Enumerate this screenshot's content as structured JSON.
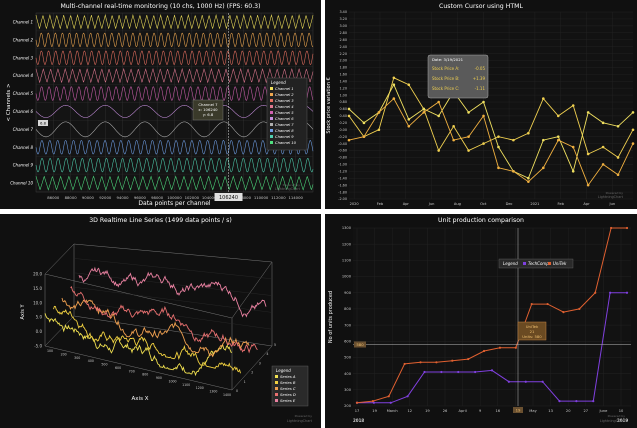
{
  "colors": {
    "background": "#101010",
    "grid": "#333333",
    "text": "#ffffff",
    "axis_text": "#cccccc",
    "legend_bg": "#2a2a2a",
    "tooltip_bg": "#5a5a5a"
  },
  "charts": {
    "multichannel": {
      "ylabel": "< Channels >",
      "cursor_label": "106240",
      "tooltip": {
        "line1": "Channel 7",
        "line2": "x: 106240",
        "line3": "y: 6.8"
      },
      "small_label": "6.8",
      "legend_title": "Legend",
      "watermark": [
        "Powered by",
        "LightningChart"
      ]
    },
    "cursor": {
      "ylabel": "Stock price variation €",
      "year_labels": [
        "2020",
        "2021"
      ],
      "tooltip": {
        "date": "Date: 3/19/2021",
        "rows": [
          {
            "label": "Stock Price A:",
            "value": "-0.05"
          },
          {
            "label": "Stock Price B:",
            "value": "+1.39"
          },
          {
            "label": "Stock Price C:",
            "value": "-1.11"
          }
        ]
      },
      "watermark": [
        "Powered by",
        "LightningChart"
      ]
    },
    "realtime3d": {
      "legend_title": "Legend",
      "watermark": [
        "Powered by",
        "LightningChart"
      ]
    },
    "production": {
      "legend_title": "Legend",
      "cursor_y_label": "580",
      "cursor_x_label": "19",
      "tooltip": {
        "line1": "UniTek",
        "line2": "21",
        "line3": "Units: 580"
      },
      "year_labels": [
        "2018",
        "2019"
      ],
      "watermark": [
        "Powered by",
        "LightningChart"
      ]
    }
  },
  "chart_data": [
    {
      "type": "line",
      "title": "Multi-channel real-time monitoring (10 chs, 1000 Hz) (FPS: 60.3)",
      "xlabel": "Data points per channel",
      "ylabel": "< Channels >",
      "xlim": [
        84000,
        116000
      ],
      "x_ticks": [
        86000,
        88000,
        90000,
        92000,
        94000,
        96000,
        98000,
        100000,
        102000,
        104000,
        106000,
        108000,
        110000,
        112000,
        114000
      ],
      "channels": [
        "Channel 1",
        "Channel 2",
        "Channel 3",
        "Channel 4",
        "Channel 5",
        "Channel 6",
        "Channel 7",
        "Channel 8",
        "Channel 9",
        "Channel 10"
      ],
      "channel_colors": [
        "#f0e05a",
        "#f0a850",
        "#e87060",
        "#e07890",
        "#d060b0",
        "#c890e0",
        "#b0b0b0",
        "#70a0e8",
        "#50d0b0",
        "#50e080"
      ],
      "cursor_x": 106240,
      "cursor_value": 6.8,
      "grid": true,
      "legend_position": "right"
    },
    {
      "type": "line",
      "title": "Custom Cursor using HTML",
      "ylabel": "Stock price variation €",
      "ylim": [
        -2.0,
        3.4
      ],
      "y_ticks": [
        -2.0,
        -1.8,
        -1.6,
        -1.4,
        -1.2,
        -1.0,
        -0.8,
        -0.6,
        -0.4,
        -0.2,
        0.0,
        0.2,
        0.4,
        0.6,
        0.8,
        1.0,
        1.2,
        1.4,
        1.6,
        1.8,
        2.0,
        2.2,
        2.4,
        2.6,
        2.8,
        3.0,
        3.2,
        3.4
      ],
      "x_tick_labels": [
        "2020",
        "Feb",
        "Apr",
        "Jun",
        "Aug",
        "Oct",
        "Dec",
        "2021",
        "Feb",
        "Apr",
        "Jun"
      ],
      "series": [
        {
          "color": "#f0d050",
          "values": [
            0.4,
            -0.2,
            0.0,
            1.5,
            1.3,
            0.6,
            -0.6,
            0.1,
            -0.6,
            -0.4,
            -0.2,
            -0.3,
            -0.1,
            0.9,
            0.4,
            0.7,
            -0.7,
            -0.5,
            -0.8,
            0.0
          ]
        },
        {
          "color": "#f0e060",
          "values": [
            0.6,
            0.2,
            0.5,
            1.3,
            0.3,
            0.6,
            0.4,
            1.1,
            0.5,
            0.8,
            -0.5,
            -1.2,
            -1.4,
            -0.3,
            -0.2,
            -1.2,
            0.5,
            0.2,
            0.1,
            0.5
          ]
        },
        {
          "color": "#f0b040",
          "values": [
            -0.3,
            -0.2,
            0.5,
            0.9,
            0.1,
            0.5,
            0.8,
            -0.3,
            -0.2,
            0.4,
            -1.1,
            -1.2,
            -1.5,
            -1.1,
            -0.3,
            -0.5,
            -1.6,
            -1.0,
            -1.3,
            -0.4
          ]
        }
      ],
      "cursor_x": "3/19/2021",
      "grid": true
    },
    {
      "type": "line",
      "title": "3D Realtime Line Series (1499 data points / s)",
      "xlabel": "Axis X",
      "ylabel": "Axis Y",
      "ylim": [
        -5,
        20
      ],
      "y_ticks": [
        20.0,
        15.0,
        10.0,
        5.0,
        0.0,
        -5.0
      ],
      "x_ticks": [
        100,
        200,
        300,
        400,
        500,
        600,
        700,
        800,
        900,
        1000,
        1100,
        1200,
        1300,
        1400
      ],
      "z_ticks": [
        0,
        1,
        2,
        3,
        4,
        5
      ],
      "series": [
        {
          "name": "Series A",
          "color": "#f0e050"
        },
        {
          "name": "Series B",
          "color": "#f0d040"
        },
        {
          "name": "Series C",
          "color": "#f0a050"
        },
        {
          "name": "Series D",
          "color": "#e87070"
        },
        {
          "name": "Series E",
          "color": "#e880a0"
        }
      ],
      "legend_position": "bottom-right"
    },
    {
      "type": "line",
      "title": "Unit production comparison",
      "ylabel": "No of units produced",
      "ylim": [
        200,
        1300
      ],
      "y_ticks": [
        200,
        300,
        400,
        500,
        600,
        700,
        800,
        900,
        1000,
        1100,
        1200,
        1300
      ],
      "x_tick_labels": [
        "17",
        "19",
        "March",
        "12",
        "19",
        "26",
        "April",
        "9",
        "16",
        "19",
        "May",
        "13",
        "20",
        "27",
        "June",
        "10"
      ],
      "series": [
        {
          "name": "TechComp",
          "color": "#8040e0",
          "values": [
            220,
            220,
            220,
            260,
            410,
            410,
            410,
            410,
            420,
            350,
            350,
            350,
            230,
            230,
            230,
            900,
            900
          ]
        },
        {
          "name": "UniTek",
          "color": "#e06030",
          "values": [
            220,
            230,
            260,
            460,
            470,
            470,
            480,
            490,
            540,
            560,
            560,
            830,
            830,
            780,
            800,
            900,
            1300,
            1300
          ]
        }
      ],
      "cursor": {
        "series": "UniTek",
        "value": 580
      },
      "grid": true,
      "legend_position": "top"
    }
  ]
}
